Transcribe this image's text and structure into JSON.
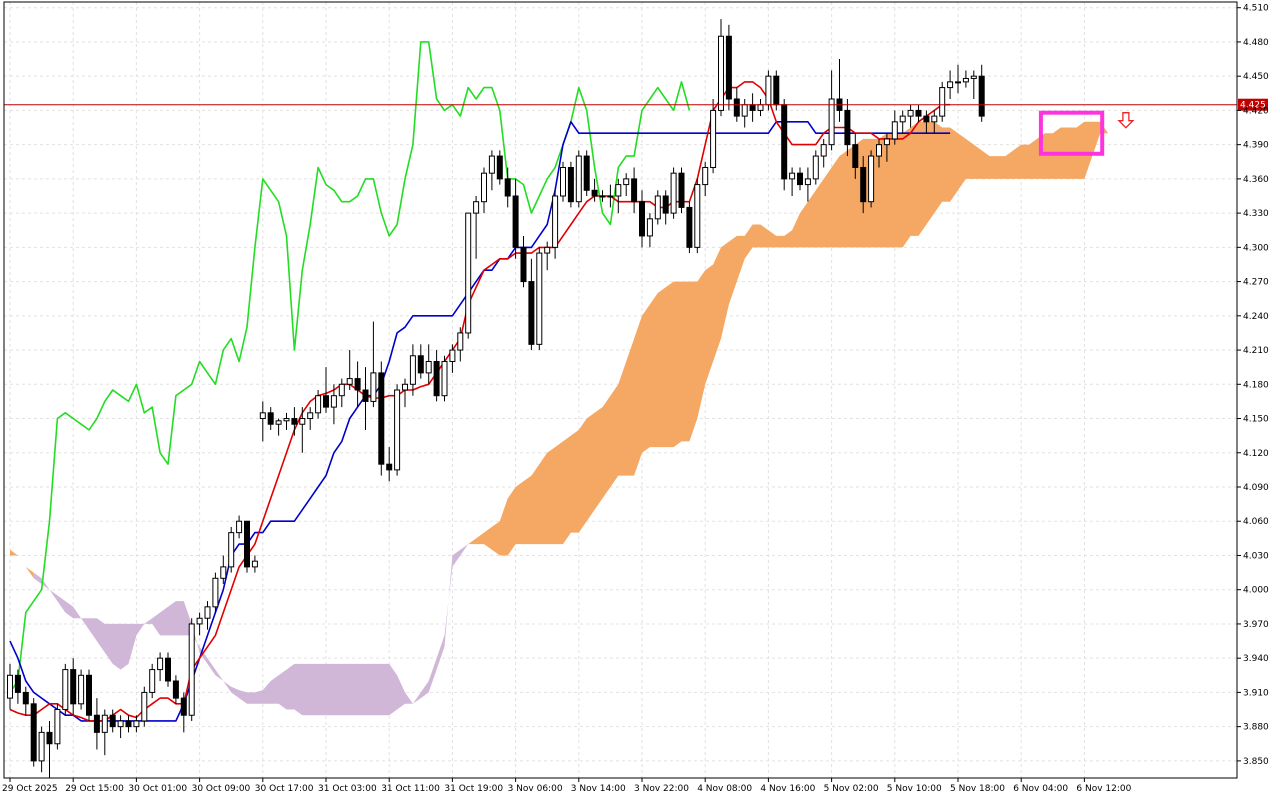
{
  "chart_data": {
    "type": "candlestick",
    "indicator": "Ichimoku Kinko Hyo",
    "price_axis": {
      "min": 3.835,
      "max": 4.515,
      "ticks": [
        "4.510",
        "4.480",
        "4.450",
        "4.420",
        "4.390",
        "4.360",
        "4.330",
        "4.300",
        "4.270",
        "4.240",
        "4.210",
        "4.180",
        "4.150",
        "4.120",
        "4.090",
        "4.060",
        "4.030",
        "4.000",
        "3.970",
        "3.940",
        "3.910",
        "3.880",
        "3.850"
      ]
    },
    "current_price": {
      "value": 4.425,
      "label": "4.425",
      "color": "#c00000"
    },
    "time_axis": {
      "labels": [
        "29 Oct 2025",
        "29 Oct 15:00",
        "30 Oct 01:00",
        "30 Oct 09:00",
        "30 Oct 17:00",
        "31 Oct 03:00",
        "31 Oct 11:00",
        "31 Oct 19:00",
        "3 Nov 06:00",
        "3 Nov 14:00",
        "3 Nov 22:00",
        "4 Nov 08:00",
        "4 Nov 16:00",
        "5 Nov 02:00",
        "5 Nov 10:00",
        "5 Nov 18:00",
        "6 Nov 04:00",
        "6 Nov 12:00"
      ],
      "label_bar_index": [
        0,
        8,
        16,
        24,
        32,
        40,
        48,
        56,
        64,
        72,
        80,
        88,
        96,
        104,
        112,
        120,
        128,
        136
      ]
    },
    "grid": true,
    "colors": {
      "tenkan": "#e00000",
      "kijun": "#0000cc",
      "chikou": "#22dd22",
      "cloud_bull": "#f4a35c",
      "cloud_bear": "#cdb3d6",
      "highlight": "#ff33dd",
      "signal_arrow": "#ee2222",
      "candle_up": "#ffffff",
      "candle_down": "#000000"
    },
    "candles": [
      [
        3.905,
        3.935,
        3.895,
        3.925
      ],
      [
        3.925,
        3.93,
        3.9,
        3.91
      ],
      [
        3.91,
        3.915,
        3.89,
        3.9
      ],
      [
        3.9,
        3.905,
        3.845,
        3.85
      ],
      [
        3.85,
        3.88,
        3.84,
        3.875
      ],
      [
        3.875,
        3.885,
        3.835,
        3.865
      ],
      [
        3.865,
        3.9,
        3.86,
        3.895
      ],
      [
        3.895,
        3.935,
        3.89,
        3.93
      ],
      [
        3.93,
        3.94,
        3.89,
        3.9
      ],
      [
        3.9,
        3.93,
        3.895,
        3.925
      ],
      [
        3.925,
        3.93,
        3.885,
        3.89
      ],
      [
        3.89,
        3.905,
        3.86,
        3.875
      ],
      [
        3.875,
        3.895,
        3.855,
        3.89
      ],
      [
        3.89,
        3.895,
        3.875,
        3.88
      ],
      [
        3.88,
        3.89,
        3.87,
        3.885
      ],
      [
        3.885,
        3.89,
        3.875,
        3.88
      ],
      [
        3.88,
        3.89,
        3.875,
        3.885
      ],
      [
        3.885,
        3.915,
        3.88,
        3.91
      ],
      [
        3.91,
        3.935,
        3.905,
        3.93
      ],
      [
        3.93,
        3.945,
        3.92,
        3.94
      ],
      [
        3.94,
        3.945,
        3.915,
        3.92
      ],
      [
        3.92,
        3.925,
        3.9,
        3.905
      ],
      [
        3.905,
        3.91,
        3.875,
        3.89
      ],
      [
        3.89,
        3.975,
        3.885,
        3.97
      ],
      [
        3.97,
        3.98,
        3.96,
        3.975
      ],
      [
        3.975,
        3.99,
        3.965,
        3.985
      ],
      [
        3.985,
        4.015,
        3.98,
        4.01
      ],
      [
        4.01,
        4.03,
        4.005,
        4.02
      ],
      [
        4.02,
        4.055,
        4.015,
        4.05
      ],
      [
        4.05,
        4.065,
        4.045,
        4.06
      ],
      [
        4.06,
        4.06,
        4.015,
        4.02
      ],
      [
        4.02,
        4.03,
        4.015,
        4.025
      ],
      [
        4.15,
        4.165,
        4.13,
        4.155
      ],
      [
        4.155,
        4.16,
        4.14,
        4.145
      ],
      [
        4.145,
        4.15,
        4.135,
        4.148
      ],
      [
        4.148,
        4.155,
        4.14,
        4.15
      ],
      [
        4.15,
        4.16,
        4.135,
        4.145
      ],
      [
        4.145,
        4.16,
        4.12,
        4.15
      ],
      [
        4.15,
        4.16,
        4.14,
        4.155
      ],
      [
        4.155,
        4.175,
        4.15,
        4.17
      ],
      [
        4.17,
        4.195,
        4.155,
        4.16
      ],
      [
        4.16,
        4.18,
        4.145,
        4.17
      ],
      [
        4.17,
        4.185,
        4.16,
        4.18
      ],
      [
        4.18,
        4.21,
        4.175,
        4.185
      ],
      [
        4.185,
        4.2,
        4.16,
        4.175
      ],
      [
        4.175,
        4.195,
        4.14,
        4.165
      ],
      [
        4.165,
        4.235,
        4.16,
        4.19
      ],
      [
        4.19,
        4.2,
        4.1,
        4.11
      ],
      [
        4.11,
        4.125,
        4.095,
        4.105
      ],
      [
        4.105,
        4.18,
        4.1,
        4.175
      ],
      [
        4.175,
        4.185,
        4.16,
        4.18
      ],
      [
        4.18,
        4.215,
        4.17,
        4.205
      ],
      [
        4.205,
        4.215,
        4.185,
        4.19
      ],
      [
        4.19,
        4.215,
        4.18,
        4.2
      ],
      [
        4.2,
        4.21,
        4.165,
        4.17
      ],
      [
        4.17,
        4.205,
        4.165,
        4.2
      ],
      [
        4.2,
        4.215,
        4.19,
        4.21
      ],
      [
        4.21,
        4.23,
        4.2,
        4.225
      ],
      [
        4.225,
        4.33,
        4.22,
        4.33
      ],
      [
        4.33,
        4.345,
        4.29,
        4.34
      ],
      [
        4.34,
        4.37,
        4.33,
        4.365
      ],
      [
        4.365,
        4.385,
        4.35,
        4.38
      ],
      [
        4.38,
        4.385,
        4.355,
        4.36
      ],
      [
        4.36,
        4.37,
        4.335,
        4.345
      ],
      [
        4.345,
        4.36,
        4.29,
        4.3
      ],
      [
        4.3,
        4.31,
        4.265,
        4.27
      ],
      [
        4.27,
        4.29,
        4.21,
        4.215
      ],
      [
        4.215,
        4.3,
        4.21,
        4.295
      ],
      [
        4.295,
        4.305,
        4.28,
        4.3
      ],
      [
        4.3,
        4.35,
        4.29,
        4.345
      ],
      [
        4.345,
        4.375,
        4.34,
        4.37
      ],
      [
        4.37,
        4.375,
        4.335,
        4.34
      ],
      [
        4.34,
        4.385,
        4.335,
        4.38
      ],
      [
        4.38,
        4.385,
        4.345,
        4.35
      ],
      [
        4.35,
        4.36,
        4.34,
        4.345
      ],
      [
        4.345,
        4.35,
        4.34,
        4.345
      ],
      [
        4.345,
        4.355,
        4.335,
        4.345
      ],
      [
        4.345,
        4.36,
        4.33,
        4.355
      ],
      [
        4.355,
        4.365,
        4.345,
        4.36
      ],
      [
        4.36,
        4.37,
        4.33,
        4.34
      ],
      [
        4.34,
        4.35,
        4.3,
        4.31
      ],
      [
        4.31,
        4.33,
        4.3,
        4.325
      ],
      [
        4.325,
        4.35,
        4.32,
        4.345
      ],
      [
        4.345,
        4.35,
        4.32,
        4.33
      ],
      [
        4.33,
        4.37,
        4.325,
        4.365
      ],
      [
        4.365,
        4.37,
        4.33,
        4.335
      ],
      [
        4.335,
        4.34,
        4.295,
        4.3
      ],
      [
        4.3,
        4.36,
        4.295,
        4.355
      ],
      [
        4.355,
        4.375,
        4.345,
        4.37
      ],
      [
        4.37,
        4.43,
        4.365,
        4.42
      ],
      [
        4.42,
        4.5,
        4.415,
        4.485
      ],
      [
        4.485,
        4.495,
        4.42,
        4.43
      ],
      [
        4.43,
        4.44,
        4.41,
        4.415
      ],
      [
        4.415,
        4.43,
        4.405,
        4.425
      ],
      [
        4.425,
        4.435,
        4.41,
        4.42
      ],
      [
        4.42,
        4.43,
        4.415,
        4.425
      ],
      [
        4.425,
        4.455,
        4.42,
        4.45
      ],
      [
        4.45,
        4.455,
        4.42,
        4.425
      ],
      [
        4.425,
        4.43,
        4.35,
        4.36
      ],
      [
        4.36,
        4.37,
        4.345,
        4.365
      ],
      [
        4.365,
        4.37,
        4.35,
        4.355
      ],
      [
        4.355,
        4.37,
        4.34,
        4.36
      ],
      [
        4.36,
        4.385,
        4.355,
        4.38
      ],
      [
        4.38,
        4.395,
        4.37,
        4.39
      ],
      [
        4.39,
        4.455,
        4.385,
        4.43
      ],
      [
        4.43,
        4.465,
        4.41,
        4.42
      ],
      [
        4.42,
        4.43,
        4.38,
        4.39
      ],
      [
        4.39,
        4.4,
        4.36,
        4.37
      ],
      [
        4.37,
        4.38,
        4.33,
        4.34
      ],
      [
        4.34,
        4.385,
        4.335,
        4.38
      ],
      [
        4.38,
        4.395,
        4.37,
        4.39
      ],
      [
        4.39,
        4.4,
        4.375,
        4.395
      ],
      [
        4.395,
        4.42,
        4.39,
        4.41
      ],
      [
        4.41,
        4.42,
        4.4,
        4.415
      ],
      [
        4.415,
        4.425,
        4.405,
        4.42
      ],
      [
        4.42,
        4.425,
        4.41,
        4.415
      ],
      [
        4.415,
        4.42,
        4.4,
        4.41
      ],
      [
        4.41,
        4.42,
        4.4,
        4.415
      ],
      [
        4.415,
        4.445,
        4.41,
        4.44
      ],
      [
        4.44,
        4.455,
        4.43,
        4.445
      ],
      [
        4.445,
        4.46,
        4.435,
        4.445
      ],
      [
        4.445,
        4.455,
        4.44,
        4.448
      ],
      [
        4.448,
        4.455,
        4.43,
        4.45
      ],
      [
        4.45,
        4.46,
        4.41,
        4.415
      ]
    ],
    "tenkan": [
      3.895,
      3.892,
      3.89,
      3.89,
      3.895,
      3.9,
      3.9,
      3.895,
      3.89,
      3.888,
      3.885,
      3.885,
      3.885,
      3.89,
      3.895,
      3.89,
      3.888,
      3.895,
      3.9,
      3.905,
      3.905,
      3.9,
      3.9,
      3.93,
      3.94,
      3.95,
      3.96,
      3.98,
      4.0,
      4.02,
      4.03,
      4.04,
      4.06,
      4.08,
      4.1,
      4.12,
      4.14,
      4.155,
      4.165,
      4.17,
      4.172,
      4.175,
      4.18,
      4.18,
      4.175,
      4.17,
      4.168,
      4.168,
      4.17,
      4.17,
      4.175,
      4.175,
      4.178,
      4.18,
      4.19,
      4.2,
      4.21,
      4.22,
      4.25,
      4.265,
      4.28,
      4.285,
      4.29,
      4.29,
      4.295,
      4.295,
      4.295,
      4.3,
      4.3,
      4.3,
      4.31,
      4.32,
      4.33,
      4.34,
      4.345,
      4.345,
      4.345,
      4.34,
      4.34,
      4.34,
      4.34,
      4.34,
      4.335,
      4.335,
      4.34,
      4.34,
      4.34,
      4.36,
      4.39,
      4.42,
      4.43,
      4.44,
      4.44,
      4.445,
      4.445,
      4.44,
      4.43,
      4.41,
      4.4,
      4.39,
      4.39,
      4.39,
      4.39,
      4.4,
      4.405,
      4.405,
      4.405,
      4.4,
      4.4,
      4.4,
      4.395,
      4.395,
      4.395,
      4.395,
      4.4,
      4.41,
      4.415,
      4.42,
      4.425,
      4.425
    ],
    "kijun": [
      3.955,
      3.94,
      3.92,
      3.91,
      3.905,
      3.9,
      3.895,
      3.89,
      3.89,
      3.885,
      3.885,
      3.885,
      3.885,
      3.885,
      3.885,
      3.885,
      3.885,
      3.885,
      3.885,
      3.885,
      3.885,
      3.885,
      3.9,
      3.92,
      3.94,
      3.96,
      3.98,
      4.0,
      4.03,
      4.04,
      4.04,
      4.05,
      4.05,
      4.06,
      4.06,
      4.06,
      4.06,
      4.07,
      4.08,
      4.09,
      4.1,
      4.12,
      4.13,
      4.15,
      4.16,
      4.17,
      4.17,
      4.18,
      4.2,
      4.225,
      4.23,
      4.24,
      4.24,
      4.24,
      4.24,
      4.24,
      4.24,
      4.25,
      4.26,
      4.27,
      4.28,
      4.28,
      4.29,
      4.29,
      4.3,
      4.3,
      4.3,
      4.31,
      4.32,
      4.35,
      4.39,
      4.41,
      4.4,
      4.4,
      4.4,
      4.4,
      4.4,
      4.4,
      4.4,
      4.4,
      4.4,
      4.4,
      4.4,
      4.4,
      4.4,
      4.4,
      4.4,
      4.4,
      4.4,
      4.4,
      4.4,
      4.4,
      4.4,
      4.4,
      4.4,
      4.4,
      4.4,
      4.41,
      4.41,
      4.41,
      4.41,
      4.41,
      4.4,
      4.4,
      4.4,
      4.4,
      4.4,
      4.4,
      4.4,
      4.4,
      4.4,
      4.4,
      4.4,
      4.4,
      4.4,
      4.4,
      4.4,
      4.4,
      4.4,
      4.4
    ],
    "chikou": [
      3.91,
      3.92,
      3.98,
      3.99,
      4.0,
      4.06,
      4.15,
      4.155,
      4.15,
      4.145,
      4.14,
      4.15,
      4.165,
      4.175,
      4.17,
      4.165,
      4.18,
      4.155,
      4.16,
      4.12,
      4.11,
      4.17,
      4.175,
      4.18,
      4.2,
      4.19,
      4.18,
      4.21,
      4.22,
      4.2,
      4.23,
      4.3,
      4.36,
      4.35,
      4.34,
      4.31,
      4.21,
      4.28,
      4.32,
      4.37,
      4.355,
      4.35,
      4.34,
      4.34,
      4.345,
      4.36,
      4.36,
      4.33,
      4.31,
      4.32,
      4.36,
      4.39,
      4.48,
      4.48,
      4.43,
      4.42,
      4.425,
      4.415,
      4.44,
      4.43,
      4.44,
      4.44,
      4.42,
      4.36,
      4.36,
      4.355,
      4.33,
      4.345,
      4.36,
      4.37,
      4.39,
      4.41,
      4.44,
      4.42,
      4.37,
      4.33,
      4.32,
      4.37,
      4.38,
      4.38,
      4.42,
      4.43,
      4.44,
      4.43,
      4.42,
      4.445,
      4.42
    ],
    "senkou_a": [
      4.035,
      4.03,
      4.02,
      4.01,
      4.005,
      4.0,
      3.995,
      3.99,
      3.985,
      3.975,
      3.965,
      3.955,
      3.945,
      3.935,
      3.93,
      3.935,
      3.96,
      3.97,
      3.975,
      3.98,
      3.985,
      3.99,
      3.99,
      3.97,
      3.945,
      3.935,
      3.925,
      3.92,
      3.915,
      3.912,
      3.91,
      3.91,
      3.912,
      3.92,
      3.925,
      3.93,
      3.935,
      3.935,
      3.935,
      3.935,
      3.935,
      3.935,
      3.935,
      3.935,
      3.935,
      3.935,
      3.935,
      3.935,
      3.935,
      3.925,
      3.91,
      3.9,
      3.91,
      3.92,
      3.94,
      3.96,
      4.02,
      4.03,
      4.04,
      4.045,
      4.05,
      4.055,
      4.06,
      4.08,
      4.09,
      4.095,
      4.1,
      4.11,
      4.12,
      4.125,
      4.13,
      4.135,
      4.14,
      4.15,
      4.155,
      4.16,
      4.17,
      4.18,
      4.2,
      4.22,
      4.24,
      4.25,
      4.26,
      4.265,
      4.27,
      4.27,
      4.27,
      4.27,
      4.28,
      4.285,
      4.3,
      4.305,
      4.31,
      4.31,
      4.32,
      4.32,
      4.315,
      4.31,
      4.31,
      4.315,
      4.33,
      4.34,
      4.35,
      4.36,
      4.37,
      4.38,
      4.385,
      4.39,
      4.395,
      4.395,
      4.395,
      4.4,
      4.4,
      4.4,
      4.405,
      4.41,
      4.41,
      4.41,
      4.405,
      4.405,
      4.4,
      4.395,
      4.39,
      4.385,
      4.38,
      4.38,
      4.38,
      4.385,
      4.39,
      4.39,
      4.395,
      4.4,
      4.4,
      4.405,
      4.405,
      4.405,
      4.41,
      4.41,
      4.41,
      4.4
    ],
    "senkou_b": [
      4.03,
      4.03,
      4.02,
      4.015,
      4.01,
      4.0,
      3.99,
      3.98,
      3.975,
      3.975,
      3.975,
      3.975,
      3.97,
      3.97,
      3.97,
      3.97,
      3.97,
      3.97,
      3.97,
      3.96,
      3.96,
      3.96,
      3.96,
      3.96,
      3.95,
      3.94,
      3.93,
      3.92,
      3.91,
      3.905,
      3.9,
      3.9,
      3.9,
      3.9,
      3.9,
      3.895,
      3.895,
      3.89,
      3.89,
      3.89,
      3.89,
      3.89,
      3.89,
      3.89,
      3.89,
      3.89,
      3.89,
      3.89,
      3.89,
      3.895,
      3.9,
      3.9,
      3.905,
      3.91,
      3.93,
      3.95,
      4.03,
      4.035,
      4.04,
      4.04,
      4.04,
      4.035,
      4.03,
      4.03,
      4.04,
      4.04,
      4.04,
      4.04,
      4.04,
      4.04,
      4.04,
      4.05,
      4.05,
      4.06,
      4.07,
      4.08,
      4.09,
      4.1,
      4.1,
      4.1,
      4.12,
      4.125,
      4.125,
      4.125,
      4.125,
      4.13,
      4.13,
      4.15,
      4.18,
      4.2,
      4.22,
      4.25,
      4.27,
      4.29,
      4.3,
      4.3,
      4.3,
      4.3,
      4.3,
      4.3,
      4.3,
      4.3,
      4.3,
      4.3,
      4.3,
      4.3,
      4.3,
      4.3,
      4.3,
      4.3,
      4.3,
      4.3,
      4.3,
      4.3,
      4.31,
      4.31,
      4.32,
      4.33,
      4.34,
      4.34,
      4.35,
      4.36,
      4.36,
      4.36,
      4.36,
      4.36,
      4.36,
      4.36,
      4.36,
      4.36,
      4.36,
      4.36,
      4.36,
      4.36,
      4.36,
      4.36,
      4.36,
      4.38,
      4.4,
      4.4
    ]
  }
}
